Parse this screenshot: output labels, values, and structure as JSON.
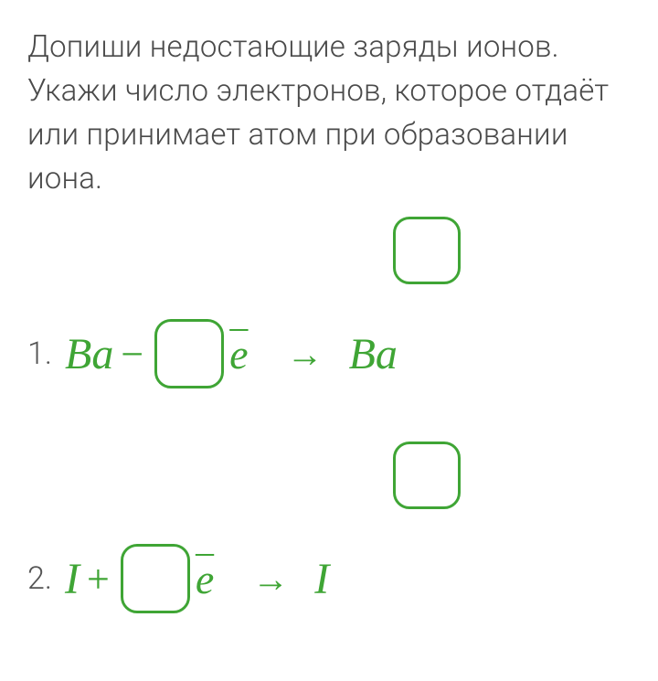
{
  "prompt_text": "Допиши недостающие заряды ионов. Укажи число электронов, которое отдаёт или принимает атом при образовании иона.",
  "problems": [
    {
      "index_label": "1.",
      "lhs_symbol": "Ba",
      "operator": "−",
      "e_symbol": "e",
      "arrow": "→",
      "rhs_symbol": "Ba"
    },
    {
      "index_label": "2.",
      "lhs_symbol": "I",
      "operator": "+",
      "e_symbol": "e",
      "arrow": "→",
      "rhs_symbol": "I"
    }
  ],
  "colors": {
    "accent": "#3fa535",
    "text": "#4a4a4a",
    "index": "#555555",
    "background": "#ffffff"
  }
}
